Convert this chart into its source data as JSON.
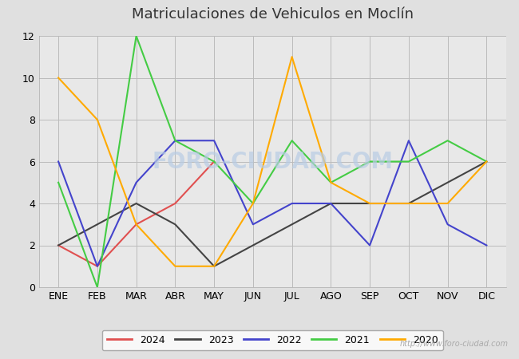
{
  "title": "Matriculaciones de Vehiculos en Moclín",
  "months": [
    "ENE",
    "FEB",
    "MAR",
    "ABR",
    "MAY",
    "JUN",
    "JUL",
    "AGO",
    "SEP",
    "OCT",
    "NOV",
    "DIC"
  ],
  "series": {
    "2024": {
      "color": "#e05050",
      "data": [
        2,
        1,
        3,
        4,
        6,
        null,
        null,
        null,
        null,
        null,
        null,
        null
      ]
    },
    "2023": {
      "color": "#444444",
      "data": [
        2,
        3,
        4,
        3,
        1,
        2,
        3,
        4,
        4,
        4,
        5,
        6
      ]
    },
    "2022": {
      "color": "#4444cc",
      "data": [
        6,
        1,
        5,
        7,
        7,
        3,
        4,
        4,
        2,
        7,
        3,
        2
      ]
    },
    "2021": {
      "color": "#44cc44",
      "data": [
        5,
        0,
        12,
        7,
        6,
        4,
        7,
        5,
        6,
        6,
        7,
        6
      ]
    },
    "2020": {
      "color": "#ffaa00",
      "data": [
        10,
        8,
        3,
        1,
        1,
        4,
        11,
        5,
        4,
        4,
        4,
        6
      ]
    }
  },
  "ylim": [
    0,
    12
  ],
  "yticks": [
    0,
    2,
    4,
    6,
    8,
    10,
    12
  ],
  "grid_color": "#bbbbbb",
  "outer_bg_color": "#e0e0e0",
  "plot_bg_color": "#e8e8e8",
  "title_color": "#333333",
  "title_fontsize": 13,
  "watermark": "http://www.foro-ciudad.com",
  "watermark_color": "#aaaaaa",
  "foro_watermark": "FORO-CIUDAD.COM",
  "foro_watermark_color": "#b8cce4",
  "legend_order": [
    "2024",
    "2023",
    "2022",
    "2021",
    "2020"
  ],
  "top_border_color": "#4472c4",
  "bottom_border_color": "#4472c4"
}
